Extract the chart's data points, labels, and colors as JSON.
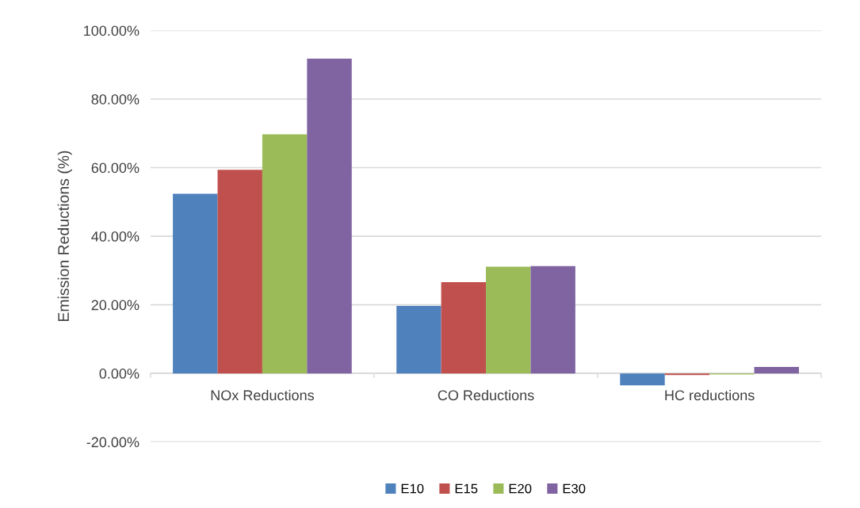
{
  "chart_data": {
    "type": "bar",
    "ylabel": "Emission Reductions (%)",
    "categories": [
      "NOx Reductions",
      "CO Reductions",
      "HC reductions"
    ],
    "series": [
      {
        "name": "E10",
        "color": "#4f81bd",
        "values": [
          52.4,
          19.7,
          -3.5
        ]
      },
      {
        "name": "E15",
        "color": "#c0504d",
        "values": [
          59.4,
          26.6,
          -0.5
        ]
      },
      {
        "name": "E20",
        "color": "#9bbb59",
        "values": [
          69.7,
          31.1,
          -0.3
        ]
      },
      {
        "name": "E30",
        "color": "#8064a2",
        "values": [
          91.8,
          31.3,
          1.9
        ]
      }
    ],
    "ylim": [
      -20,
      100
    ],
    "yticks": [
      {
        "value": -20,
        "label": "-20.00%"
      },
      {
        "value": 0,
        "label": "0.00%"
      },
      {
        "value": 20,
        "label": "20.00%"
      },
      {
        "value": 40,
        "label": "40.00%"
      },
      {
        "value": 60,
        "label": "60.00%"
      },
      {
        "value": 80,
        "label": "80.00%"
      },
      {
        "value": 100,
        "label": "100.00%"
      }
    ],
    "grid": "y",
    "legend": "bottom"
  }
}
